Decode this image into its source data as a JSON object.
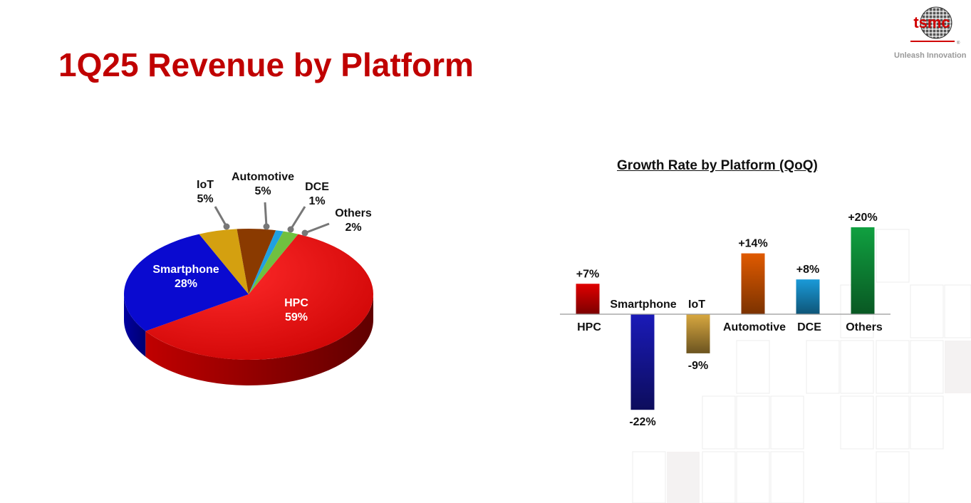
{
  "slide": {
    "title": "1Q25 Revenue by Platform",
    "logo_text": "tsmc",
    "logo_registered": "®",
    "tagline": "Unleash Innovation"
  },
  "colors": {
    "title_red": "#c00000",
    "hpc": "#e00000",
    "smartphone": "#0a0ad0",
    "iot": "#d4a010",
    "automotive": "#8a3a00",
    "dce": "#20a0e0",
    "others": "#70c040"
  },
  "chart_data": [
    {
      "type": "pie",
      "style": "3d",
      "title": "",
      "slices": [
        {
          "label": "HPC",
          "value_label": "59%",
          "value": 59,
          "color": "#e00000"
        },
        {
          "label": "Smartphone",
          "value_label": "28%",
          "value": 28,
          "color": "#0a0ad0"
        },
        {
          "label": "IoT",
          "value_label": "5%",
          "value": 5,
          "color": "#d4a010"
        },
        {
          "label": "Automotive",
          "value_label": "5%",
          "value": 5,
          "color": "#8a3a00"
        },
        {
          "label": "DCE",
          "value_label": "1%",
          "value": 1,
          "color": "#20a0e0"
        },
        {
          "label": "Others",
          "value_label": "2%",
          "value": 2,
          "color": "#70c040"
        }
      ]
    },
    {
      "type": "bar",
      "title": "Growth Rate by Platform (QoQ)",
      "categories": [
        "HPC",
        "Smartphone",
        "IoT",
        "Automotive",
        "DCE",
        "Others"
      ],
      "values": [
        7,
        -22,
        -9,
        14,
        8,
        20
      ],
      "value_labels": [
        "+7%",
        "-22%",
        "-9%",
        "+14%",
        "+8%",
        "+20%"
      ],
      "colors": [
        "#e00000",
        "#1a1ab8",
        "#d8a840",
        "#e05a00",
        "#1a9ad8",
        "#10a040"
      ],
      "xlabel": "",
      "ylabel": "",
      "ylim": [
        -22,
        20
      ]
    }
  ]
}
